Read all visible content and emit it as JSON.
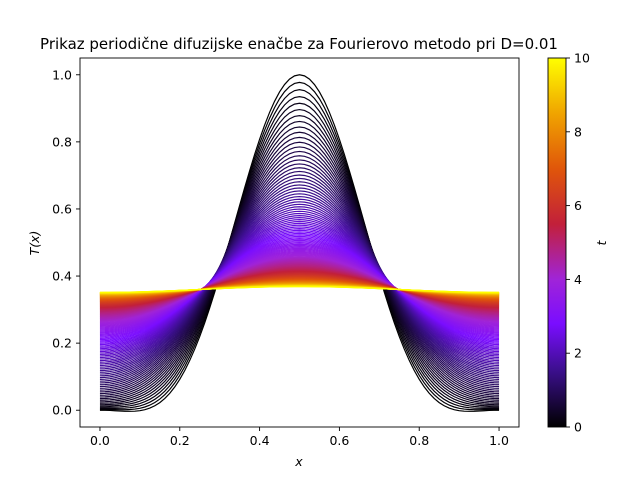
{
  "chart_data": {
    "type": "line",
    "title": "Prikaz periodične difuzijske enačbe za Fourierovo metodo pri D=0.01",
    "xlabel": "x",
    "ylabel": "T(x)",
    "xlim": [
      -0.05,
      1.05
    ],
    "ylim": [
      -0.05,
      1.05
    ],
    "x_ticks": [
      0.0,
      0.2,
      0.4,
      0.6,
      0.8,
      1.0
    ],
    "x_tick_labels": [
      "0.0",
      "0.2",
      "0.4",
      "0.6",
      "0.8",
      "1.0"
    ],
    "y_ticks": [
      0.0,
      0.2,
      0.4,
      0.6,
      0.8,
      1.0
    ],
    "y_tick_labels": [
      "0.0",
      "0.2",
      "0.4",
      "0.6",
      "0.8",
      "1.0"
    ],
    "grid": false,
    "legend": "none",
    "colormap": "gnuplot",
    "series": {
      "description": "family of temperature profiles T(x,t) on x in [0,1], one curve per time step, coloured by t",
      "x_range": [
        0.0,
        1.0
      ],
      "t_range": [
        0,
        10
      ],
      "initial": {
        "t": 0,
        "x": [
          0.0,
          0.1,
          0.2,
          0.25,
          0.3,
          0.4,
          0.5,
          0.6,
          0.7,
          0.75,
          0.8,
          0.9,
          1.0
        ],
        "y": [
          0.0,
          0.03,
          0.14,
          0.25,
          0.38,
          0.77,
          1.0,
          0.77,
          0.38,
          0.25,
          0.14,
          0.03,
          0.0
        ]
      },
      "final": {
        "t": 10,
        "x": [
          0.0,
          0.1,
          0.2,
          0.3,
          0.4,
          0.5,
          0.6,
          0.7,
          0.8,
          0.9,
          1.0
        ],
        "y": [
          0.345,
          0.348,
          0.352,
          0.357,
          0.361,
          0.362,
          0.361,
          0.357,
          0.352,
          0.348,
          0.345
        ]
      }
    },
    "colorbar": {
      "label": "t",
      "range": [
        0,
        10
      ],
      "ticks": [
        0,
        2,
        4,
        6,
        8,
        10
      ],
      "tick_labels": [
        "0",
        "2",
        "4",
        "6",
        "8",
        "10"
      ]
    }
  }
}
